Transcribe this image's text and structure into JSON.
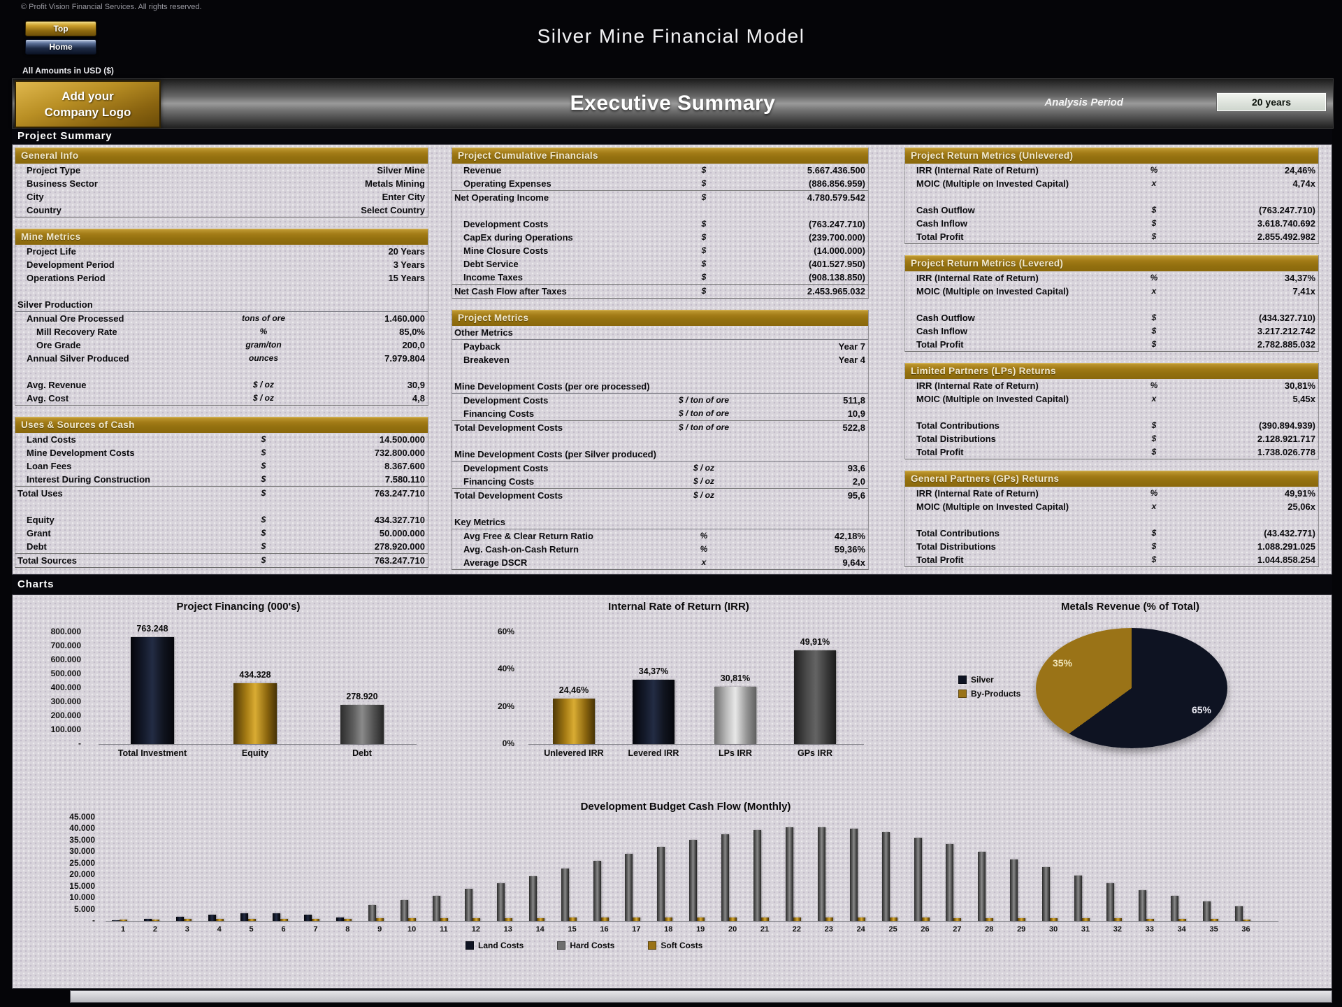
{
  "page": {
    "copyright": "© Profit Vision Financial Services. All rights reserved.",
    "top_button": "Top",
    "home_button": "Home",
    "title": "Silver Mine Financial Model",
    "amounts_note": "All Amounts in USD ($)",
    "logo_line1": "Add your",
    "logo_line2": "Company Logo",
    "banner_title": "Executive Summary",
    "analysis_period_label": "Analysis Period",
    "analysis_period_value": "20 years",
    "project_summary_label": "Project Summary",
    "charts_label": "Charts"
  },
  "colors": {
    "navy": "#0e1322",
    "gold": "#9a7317",
    "gray": "#6e6e6e",
    "silver": "#c0c0c0",
    "darkgray": "#3f3f3f",
    "section_header": "#a37c17",
    "panel": "#d8d4db"
  },
  "summary": {
    "left": {
      "sections": [
        {
          "title": "General Info",
          "rows": [
            {
              "l": "Project Type",
              "u": "",
              "v": "Silver Mine"
            },
            {
              "l": "Business Sector",
              "u": "",
              "v": "Metals Mining"
            },
            {
              "l": "City",
              "u": "",
              "v": "Enter City"
            },
            {
              "l": "Country",
              "u": "",
              "v": "Select Country"
            }
          ]
        },
        {
          "title": "Mine Metrics",
          "rows": [
            {
              "l": "Project Life",
              "u": "",
              "v": "20 Years"
            },
            {
              "l": "Development Period",
              "u": "",
              "v": "3 Years"
            },
            {
              "l": "Operations Period",
              "u": "",
              "v": "15 Years"
            },
            {
              "sp": true
            },
            {
              "l": "Silver Production",
              "sub": true,
              "i": 0
            },
            {
              "l": "Annual Ore Processed",
              "u": "tons of ore",
              "v": "1.460.000"
            },
            {
              "l": "Mill Recovery Rate",
              "u": "%",
              "v": "85,0%",
              "i": 2
            },
            {
              "l": "Ore Grade",
              "u": "gram/ton",
              "v": "200,0",
              "i": 2
            },
            {
              "l": "Annual Silver Produced",
              "u": "ounces",
              "v": "7.979.804"
            },
            {
              "sp": true
            },
            {
              "l": "Avg. Revenue",
              "u": "$ / oz",
              "v": "30,9"
            },
            {
              "l": "Avg. Cost",
              "u": "$ / oz",
              "v": "4,8"
            }
          ]
        },
        {
          "title": "Uses & Sources of Cash",
          "rows": [
            {
              "l": "Land Costs",
              "u": "$",
              "v": "14.500.000"
            },
            {
              "l": "Mine Development Costs",
              "u": "$",
              "v": "732.800.000"
            },
            {
              "l": "Loan Fees",
              "u": "$",
              "v": "8.367.600"
            },
            {
              "l": "Interest During Construction",
              "u": "$",
              "v": "7.580.110"
            },
            {
              "l": "Total Uses",
              "u": "$",
              "v": "763.247.710",
              "i": 0,
              "top": true
            },
            {
              "sp": true
            },
            {
              "l": "Equity",
              "u": "$",
              "v": "434.327.710"
            },
            {
              "l": "Grant",
              "u": "$",
              "v": "50.000.000"
            },
            {
              "l": "Debt",
              "u": "$",
              "v": "278.920.000"
            },
            {
              "l": "Total Sources",
              "u": "$",
              "v": "763.247.710",
              "i": 0,
              "top": true
            }
          ]
        }
      ]
    },
    "middle": {
      "sections": [
        {
          "title": "Project Cumulative Financials",
          "rows": [
            {
              "l": "Revenue",
              "u": "$",
              "v": "5.667.436.500"
            },
            {
              "l": "Operating Expenses",
              "u": "$",
              "v": "(886.856.959)"
            },
            {
              "l": "Net Operating Income",
              "u": "$",
              "v": "4.780.579.542",
              "i": 0,
              "top": true
            },
            {
              "sp": true
            },
            {
              "l": "Development Costs",
              "u": "$",
              "v": "(763.247.710)"
            },
            {
              "l": "CapEx during Operations",
              "u": "$",
              "v": "(239.700.000)"
            },
            {
              "l": "Mine Closure Costs",
              "u": "$",
              "v": "(14.000.000)"
            },
            {
              "l": "Debt Service",
              "u": "$",
              "v": "(401.527.950)"
            },
            {
              "l": "Income Taxes",
              "u": "$",
              "v": "(908.138.850)"
            },
            {
              "l": "Net Cash Flow after Taxes",
              "u": "$",
              "v": "2.453.965.032",
              "i": 0,
              "top": true
            }
          ]
        },
        {
          "title": "Project Metrics",
          "rows": [
            {
              "l": "Other Metrics",
              "sub": true,
              "i": 0
            },
            {
              "l": "Payback",
              "u": "",
              "v": "Year 7"
            },
            {
              "l": "Breakeven",
              "u": "",
              "v": "Year 4"
            },
            {
              "sp": true
            },
            {
              "l": "Mine Development Costs (per ore processed)",
              "sub": true,
              "i": 0
            },
            {
              "l": "Development Costs",
              "u": "$ / ton of ore",
              "v": "511,8"
            },
            {
              "l": "Financing Costs",
              "u": "$ / ton of ore",
              "v": "10,9"
            },
            {
              "l": "Total Development Costs",
              "u": "$ / ton of ore",
              "v": "522,8",
              "i": 0,
              "top": true
            },
            {
              "sp": true
            },
            {
              "l": "Mine Development Costs (per Silver produced)",
              "sub": true,
              "i": 0
            },
            {
              "l": "Development Costs",
              "u": "$ / oz",
              "v": "93,6"
            },
            {
              "l": "Financing Costs",
              "u": "$ / oz",
              "v": "2,0"
            },
            {
              "l": "Total Development Costs",
              "u": "$ / oz",
              "v": "95,6",
              "i": 0,
              "top": true
            },
            {
              "sp": true
            },
            {
              "l": "Key Metrics",
              "sub": true,
              "i": 0
            },
            {
              "l": "Avg Free & Clear Return Ratio",
              "u": "%",
              "v": "42,18%"
            },
            {
              "l": "Avg. Cash-on-Cash Return",
              "u": "%",
              "v": "59,36%"
            },
            {
              "l": "Average DSCR",
              "u": "x",
              "v": "9,64x"
            }
          ]
        }
      ]
    },
    "right": {
      "sections": [
        {
          "title": "Project Return Metrics (Unlevered)",
          "rows": [
            {
              "l": "IRR (Internal Rate of Return)",
              "u": "%",
              "v": "24,46%"
            },
            {
              "l": "MOIC (Multiple on Invested Capital)",
              "u": "x",
              "v": "4,74x"
            },
            {
              "sp": true
            },
            {
              "l": "Cash Outflow",
              "u": "$",
              "v": "(763.247.710)"
            },
            {
              "l": "Cash Inflow",
              "u": "$",
              "v": "3.618.740.692"
            },
            {
              "l": "Total Profit",
              "u": "$",
              "v": "2.855.492.982"
            }
          ]
        },
        {
          "title": "Project Return Metrics (Levered)",
          "rows": [
            {
              "l": "IRR (Internal Rate of Return)",
              "u": "%",
              "v": "34,37%"
            },
            {
              "l": "MOIC (Multiple on Invested Capital)",
              "u": "x",
              "v": "7,41x"
            },
            {
              "sp": true
            },
            {
              "l": "Cash Outflow",
              "u": "$",
              "v": "(434.327.710)"
            },
            {
              "l": "Cash Inflow",
              "u": "$",
              "v": "3.217.212.742"
            },
            {
              "l": "Total Profit",
              "u": "$",
              "v": "2.782.885.032"
            }
          ]
        },
        {
          "title": "Limited Partners (LPs) Returns",
          "rows": [
            {
              "l": "IRR (Internal Rate of Return)",
              "u": "%",
              "v": "30,81%"
            },
            {
              "l": "MOIC (Multiple on Invested Capital)",
              "u": "x",
              "v": "5,45x"
            },
            {
              "sp": true
            },
            {
              "l": "Total Contributions",
              "u": "$",
              "v": "(390.894.939)"
            },
            {
              "l": "Total Distributions",
              "u": "$",
              "v": "2.128.921.717"
            },
            {
              "l": "Total Profit",
              "u": "$",
              "v": "1.738.026.778"
            }
          ]
        },
        {
          "title": "General Partners (GPs) Returns",
          "rows": [
            {
              "l": "IRR (Internal Rate of Return)",
              "u": "%",
              "v": "49,91%"
            },
            {
              "l": "MOIC (Multiple on Invested Capital)",
              "u": "x",
              "v": "25,06x"
            },
            {
              "sp": true
            },
            {
              "l": "Total Contributions",
              "u": "$",
              "v": "(43.432.771)"
            },
            {
              "l": "Total Distributions",
              "u": "$",
              "v": "1.088.291.025"
            },
            {
              "l": "Total Profit",
              "u": "$",
              "v": "1.044.858.254"
            }
          ]
        }
      ]
    }
  },
  "chart_data": [
    {
      "type": "bar",
      "title": "Project Financing (000's)",
      "categories": [
        "Total Investment",
        "Equity",
        "Debt"
      ],
      "values": [
        763248,
        434328,
        278920
      ],
      "value_labels": [
        "763.248",
        "434.328",
        "278.920"
      ],
      "bar_colors": [
        "navy",
        "gold",
        "gray"
      ],
      "y_ticks": [
        "800.000",
        "700.000",
        "600.000",
        "500.000",
        "400.000",
        "300.000",
        "200.000",
        "100.000",
        "-"
      ],
      "ylim": [
        0,
        800000
      ],
      "xlabel": "",
      "ylabel": "",
      "grid": false,
      "legend_position": "none"
    },
    {
      "type": "bar",
      "title": "Internal Rate of Return (IRR)",
      "categories": [
        "Unlevered IRR",
        "Levered IRR",
        "LPs IRR",
        "GPs IRR"
      ],
      "values": [
        24.46,
        34.37,
        30.81,
        49.91
      ],
      "value_labels": [
        "24,46%",
        "34,37%",
        "30,81%",
        "49,91%"
      ],
      "bar_colors": [
        "gold",
        "navy",
        "silver",
        "darkgray"
      ],
      "y_ticks": [
        "60%",
        "40%",
        "20%",
        "0%"
      ],
      "ylim": [
        0,
        60
      ],
      "xlabel": "",
      "ylabel": "",
      "grid": false,
      "legend_position": "none"
    },
    {
      "type": "pie",
      "title": "Metals Revenue (% of Total)",
      "slices": [
        {
          "label": "Silver",
          "value": 65,
          "text": "65%",
          "color": "navy"
        },
        {
          "label": "By-Products",
          "value": 35,
          "text": "35%",
          "color": "gold"
        }
      ],
      "legend_position": "left"
    },
    {
      "type": "bar",
      "title": "Development Budget Cash Flow (Monthly)",
      "categories": [
        "1",
        "2",
        "3",
        "4",
        "5",
        "6",
        "7",
        "8",
        "9",
        "10",
        "11",
        "12",
        "13",
        "14",
        "15",
        "16",
        "17",
        "18",
        "19",
        "20",
        "21",
        "22",
        "23",
        "24",
        "25",
        "26",
        "27",
        "28",
        "29",
        "30",
        "31",
        "32",
        "33",
        "34",
        "35",
        "36"
      ],
      "series": [
        {
          "name": "Land Costs",
          "color": "navy",
          "values": [
            400,
            900,
            1700,
            2600,
            3300,
            3300,
            2600,
            1600,
            0,
            0,
            0,
            0,
            0,
            0,
            0,
            0,
            0,
            0,
            0,
            0,
            0,
            0,
            0,
            0,
            0,
            0,
            0,
            0,
            0,
            0,
            0,
            0,
            0,
            0,
            0,
            0
          ]
        },
        {
          "name": "Hard Costs",
          "color": "gray",
          "values": [
            0,
            0,
            0,
            0,
            0,
            0,
            0,
            0,
            7000,
            9000,
            11000,
            14000,
            16500,
            19500,
            22800,
            26000,
            29300,
            32300,
            35300,
            37800,
            39500,
            40600,
            40600,
            40000,
            38500,
            36200,
            33300,
            30200,
            26800,
            23300,
            19800,
            16300,
            13300,
            10800,
            8400,
            6400
          ]
        },
        {
          "name": "Soft Costs",
          "color": "gold",
          "values": [
            600,
            700,
            800,
            900,
            1000,
            1000,
            900,
            800,
            1100,
            1150,
            1200,
            1250,
            1300,
            1350,
            1400,
            1450,
            1500,
            1500,
            1500,
            1500,
            1500,
            1500,
            1500,
            1500,
            1450,
            1400,
            1350,
            1300,
            1250,
            1200,
            1150,
            1100,
            1000,
            900,
            800,
            700
          ]
        }
      ],
      "y_ticks": [
        "45.000",
        "40.000",
        "35.000",
        "30.000",
        "25.000",
        "20.000",
        "15.000",
        "10.000",
        "5.000",
        "-"
      ],
      "ylim": [
        0,
        45000
      ],
      "xlabel": "",
      "ylabel": "",
      "grid": false,
      "legend_position": "bottom"
    }
  ]
}
